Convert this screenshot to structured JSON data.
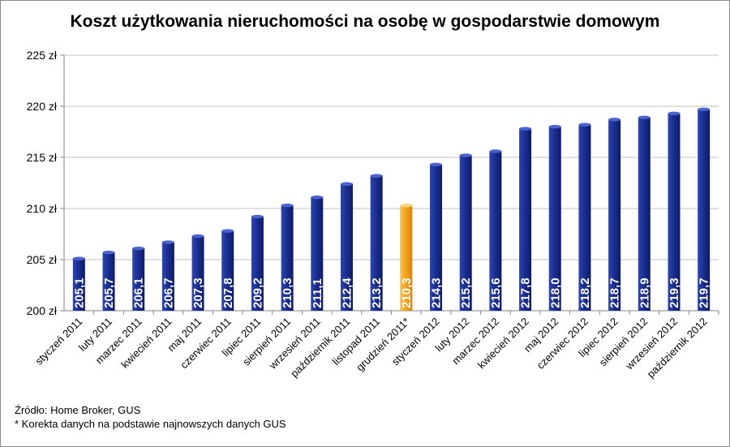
{
  "chart_data": {
    "type": "bar",
    "title": "Koszt użytkowania nieruchomości na osobę w gospodarstwie domowym",
    "categories": [
      "styczeń 2011",
      "luty 2011",
      "marzec 2011",
      "kwiecień 2011",
      "maj 2011",
      "czerwiec 2011",
      "lipiec 2011",
      "sierpień 2011",
      "wrzesień 2011",
      "październik 2011",
      "listopad 2011",
      "grudzień 2011*",
      "styczeń 2012",
      "luty 2012",
      "marzec 2012",
      "kwiecień 2012",
      "maj 2012",
      "czerwiec 2012",
      "lipiec 2012",
      "sierpień 2012",
      "wrzesień 2012",
      "październik 2012"
    ],
    "values": [
      205.1,
      205.7,
      206.1,
      206.7,
      207.3,
      207.8,
      209.2,
      210.3,
      211.1,
      212.4,
      213.2,
      210.3,
      214.3,
      215.2,
      215.6,
      217.8,
      218.0,
      218.2,
      218.7,
      218.9,
      219.3,
      219.7
    ],
    "data_labels": [
      "205,1",
      "205,7",
      "206,1",
      "206,7",
      "207,3",
      "207,8",
      "209,2",
      "210,3",
      "211,1",
      "212,4",
      "213,2",
      "210,3",
      "214,3",
      "215,2",
      "215,6",
      "217,8",
      "218,0",
      "218,2",
      "218,7",
      "218,9",
      "219,3",
      "219,7"
    ],
    "ylim": [
      200,
      225
    ],
    "yticks": [
      200,
      205,
      210,
      215,
      220,
      225
    ],
    "ytick_labels": [
      "200 zł",
      "205 zł",
      "210 zł",
      "215 zł",
      "220 zł",
      "225 zł"
    ],
    "xlabel": "",
    "ylabel": "",
    "grid": true,
    "highlight_index": 11,
    "colors": {
      "bar": "#1a2f8e",
      "highlight": "#f5a318",
      "grid": "#c0c0c0",
      "axis": "#868686"
    }
  },
  "notes": {
    "source": "Źródło: Home Broker, GUS",
    "footnote": "* Korekta danych na podstawie najnowszych danych GUS"
  }
}
